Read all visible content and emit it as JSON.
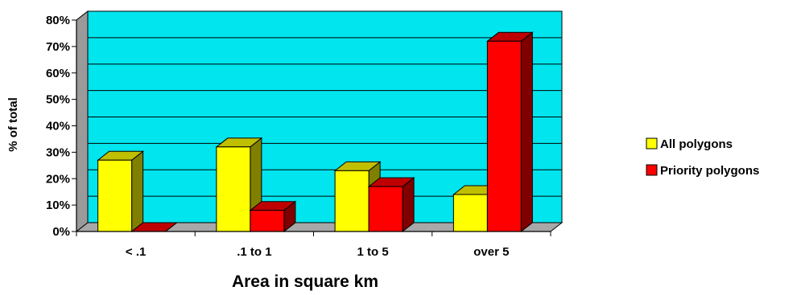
{
  "chart_data": {
    "type": "bar",
    "title": "",
    "xlabel": "Area in square km",
    "ylabel": "% of total",
    "categories": [
      "< .1",
      ".1 to 1",
      "1 to 5",
      "over 5"
    ],
    "series": [
      {
        "name": "All polygons",
        "values": [
          27,
          32,
          23,
          14
        ],
        "color": "#ffff00"
      },
      {
        "name": "Priority polygons",
        "values": [
          0,
          8,
          17,
          72
        ],
        "color": "#ff0000"
      }
    ],
    "ylim": [
      0,
      80
    ],
    "yticks": [
      0,
      10,
      20,
      30,
      40,
      50,
      60,
      70,
      80
    ],
    "ytick_labels": [
      "0%",
      "10%",
      "20%",
      "30%",
      "40%",
      "50%",
      "60%",
      "70%",
      "80%"
    ],
    "grid": true,
    "three_d": true,
    "plot_background": "#00e5ee",
    "floor_color": "#a8a8a8",
    "legend_position": "right"
  }
}
